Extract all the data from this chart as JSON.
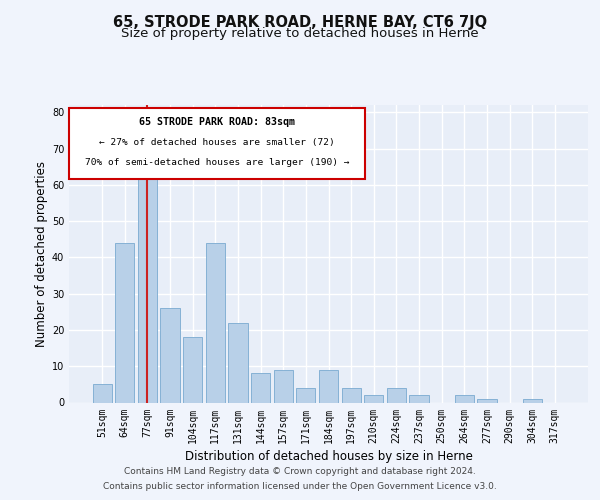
{
  "title": "65, STRODE PARK ROAD, HERNE BAY, CT6 7JQ",
  "subtitle": "Size of property relative to detached houses in Herne",
  "xlabel": "Distribution of detached houses by size in Herne",
  "ylabel": "Number of detached properties",
  "categories": [
    "51sqm",
    "64sqm",
    "77sqm",
    "91sqm",
    "104sqm",
    "117sqm",
    "131sqm",
    "144sqm",
    "157sqm",
    "171sqm",
    "184sqm",
    "197sqm",
    "210sqm",
    "224sqm",
    "237sqm",
    "250sqm",
    "264sqm",
    "277sqm",
    "290sqm",
    "304sqm",
    "317sqm"
  ],
  "values": [
    5,
    44,
    65,
    26,
    18,
    44,
    22,
    8,
    9,
    4,
    9,
    4,
    2,
    4,
    2,
    0,
    2,
    1,
    0,
    1,
    0
  ],
  "bar_color": "#b8d0e8",
  "bar_edge_color": "#7aaad0",
  "highlight_bar_index": 2,
  "highlight_color": "#cc2222",
  "annotation_border_color": "#cc0000",
  "annotation_text_line1": "65 STRODE PARK ROAD: 83sqm",
  "annotation_text_line2": "← 27% of detached houses are smaller (72)",
  "annotation_text_line3": "70% of semi-detached houses are larger (190) →",
  "ylim": [
    0,
    82
  ],
  "yticks": [
    0,
    10,
    20,
    30,
    40,
    50,
    60,
    70,
    80
  ],
  "footer_line1": "Contains HM Land Registry data © Crown copyright and database right 2024.",
  "footer_line2": "Contains public sector information licensed under the Open Government Licence v3.0.",
  "bg_color": "#f0f4fc",
  "plot_bg_color": "#e8eef8",
  "grid_color": "#ffffff",
  "title_fontsize": 10.5,
  "subtitle_fontsize": 9.5,
  "xlabel_fontsize": 8.5,
  "ylabel_fontsize": 8.5,
  "tick_fontsize": 7,
  "footer_fontsize": 6.5
}
